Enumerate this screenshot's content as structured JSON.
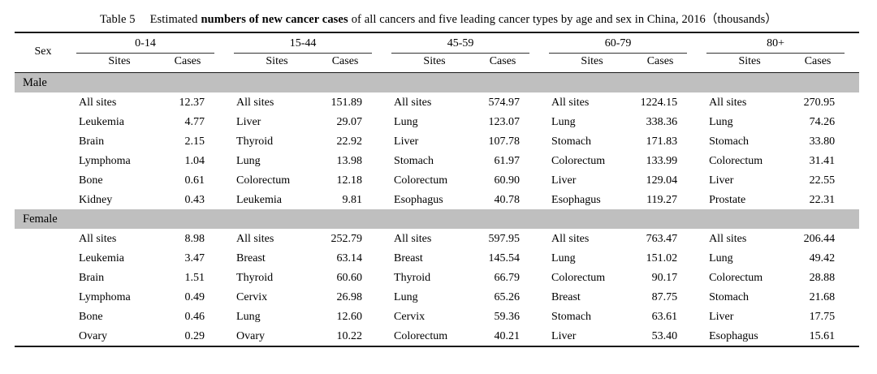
{
  "caption": {
    "label": "Table 5",
    "before_bold": "Estimated",
    "bold": "numbers of new cancer cases",
    "after_bold": "of all cancers and five leading cancer types by age and sex in China, 2016（thousands）"
  },
  "table": {
    "sex_header": "Sex",
    "age_groups": [
      "0-14",
      "15-44",
      "45-59",
      "60-79",
      "80+"
    ],
    "sub_headers": {
      "sites": "Sites",
      "cases": "Cases"
    },
    "sections": [
      {
        "sex": "Male",
        "rows": [
          [
            [
              "All sites",
              "12.37"
            ],
            [
              "All sites",
              "151.89"
            ],
            [
              "All sites",
              "574.97"
            ],
            [
              "All sites",
              "1224.15"
            ],
            [
              "All sites",
              "270.95"
            ]
          ],
          [
            [
              "Leukemia",
              "4.77"
            ],
            [
              "Liver",
              "29.07"
            ],
            [
              "Lung",
              "123.07"
            ],
            [
              "Lung",
              "338.36"
            ],
            [
              "Lung",
              "74.26"
            ]
          ],
          [
            [
              "Brain",
              "2.15"
            ],
            [
              "Thyroid",
              "22.92"
            ],
            [
              "Liver",
              "107.78"
            ],
            [
              "Stomach",
              "171.83"
            ],
            [
              "Stomach",
              "33.80"
            ]
          ],
          [
            [
              "Lymphoma",
              "1.04"
            ],
            [
              "Lung",
              "13.98"
            ],
            [
              "Stomach",
              "61.97"
            ],
            [
              "Colorectum",
              "133.99"
            ],
            [
              "Colorectum",
              "31.41"
            ]
          ],
          [
            [
              "Bone",
              "0.61"
            ],
            [
              "Colorectum",
              "12.18"
            ],
            [
              "Colorectum",
              "60.90"
            ],
            [
              "Liver",
              "129.04"
            ],
            [
              "Liver",
              "22.55"
            ]
          ],
          [
            [
              "Kidney",
              "0.43"
            ],
            [
              "Leukemia",
              "9.81"
            ],
            [
              "Esophagus",
              "40.78"
            ],
            [
              "Esophagus",
              "119.27"
            ],
            [
              "Prostate",
              "22.31"
            ]
          ]
        ]
      },
      {
        "sex": "Female",
        "rows": [
          [
            [
              "All sites",
              "8.98"
            ],
            [
              "All sites",
              "252.79"
            ],
            [
              "All sites",
              "597.95"
            ],
            [
              "All sites",
              "763.47"
            ],
            [
              "All sites",
              "206.44"
            ]
          ],
          [
            [
              "Leukemia",
              "3.47"
            ],
            [
              "Breast",
              "63.14"
            ],
            [
              "Breast",
              "145.54"
            ],
            [
              "Lung",
              "151.02"
            ],
            [
              "Lung",
              "49.42"
            ]
          ],
          [
            [
              "Brain",
              "1.51"
            ],
            [
              "Thyroid",
              "60.60"
            ],
            [
              "Thyroid",
              "66.79"
            ],
            [
              "Colorectum",
              "90.17"
            ],
            [
              "Colorectum",
              "28.88"
            ]
          ],
          [
            [
              "Lymphoma",
              "0.49"
            ],
            [
              "Cervix",
              "26.98"
            ],
            [
              "Lung",
              "65.26"
            ],
            [
              "Breast",
              "87.75"
            ],
            [
              "Stomach",
              "21.68"
            ]
          ],
          [
            [
              "Bone",
              "0.46"
            ],
            [
              "Lung",
              "12.60"
            ],
            [
              "Cervix",
              "59.36"
            ],
            [
              "Stomach",
              "63.61"
            ],
            [
              "Liver",
              "17.75"
            ]
          ],
          [
            [
              "Ovary",
              "0.29"
            ],
            [
              "Ovary",
              "10.22"
            ],
            [
              "Colorectum",
              "40.21"
            ],
            [
              "Liver",
              "53.40"
            ],
            [
              "Esophagus",
              "15.61"
            ]
          ]
        ]
      }
    ]
  },
  "colors": {
    "band_bg": "#bfbfbf",
    "rule": "#1a1a1a"
  }
}
